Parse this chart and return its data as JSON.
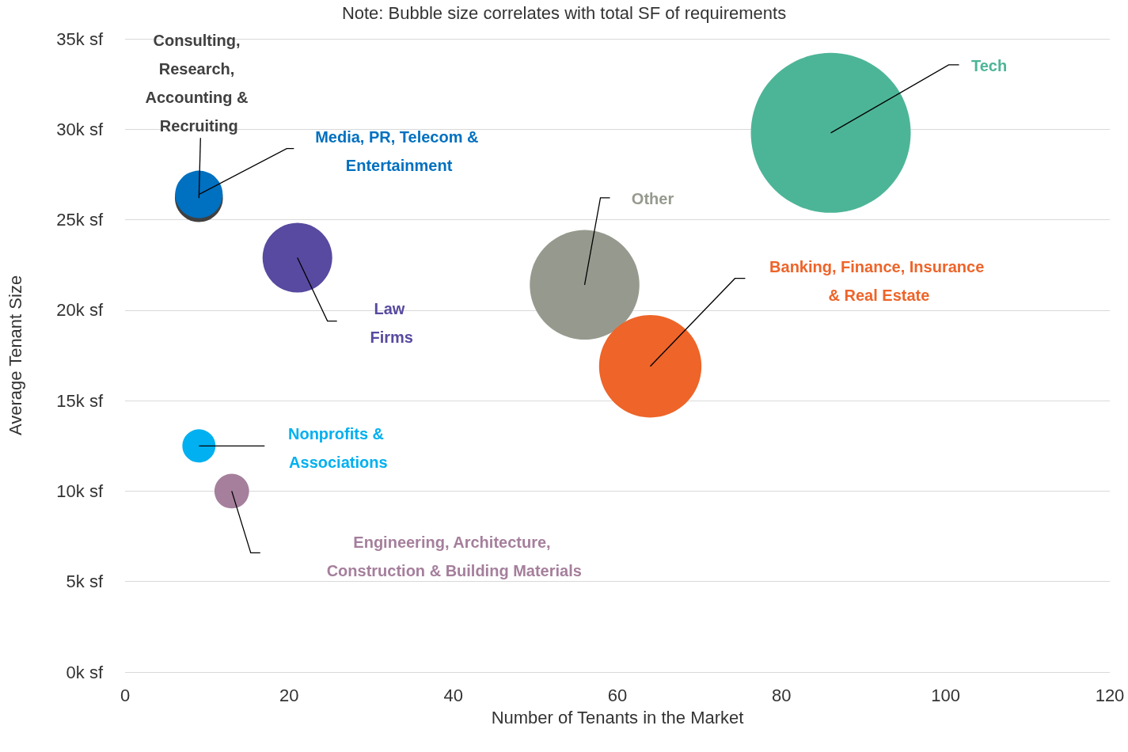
{
  "chart_data": {
    "type": "bubble",
    "title": "Note: Bubble size correlates with total SF of requirements",
    "xlabel": "Number of Tenants in the Market",
    "ylabel": "Average Tenant Size",
    "xlim": [
      0,
      120
    ],
    "xticks": [
      0,
      20,
      40,
      60,
      80,
      100,
      120
    ],
    "ylim": [
      0,
      35000
    ],
    "yticks": [
      {
        "value": 0,
        "label": "0k sf"
      },
      {
        "value": 5000,
        "label": "5k sf"
      },
      {
        "value": 10000,
        "label": "10k sf"
      },
      {
        "value": 15000,
        "label": "15k sf"
      },
      {
        "value": 20000,
        "label": "20k sf"
      },
      {
        "value": 25000,
        "label": "25k sf"
      },
      {
        "value": 30000,
        "label": "30k sf"
      },
      {
        "value": 35000,
        "label": "35k sf"
      }
    ],
    "grid": "y",
    "legend": false,
    "marker": "circle",
    "series": [
      {
        "name": "Consulting, Research, Accounting & Recruiting",
        "color": "#404040",
        "x": [
          9
        ],
        "values": [
          26200
        ],
        "sizes": [
          0.09
        ]
      },
      {
        "name": "Media, PR, Telecom & Entertainment",
        "color": "#0070c0",
        "x": [
          9
        ],
        "values": [
          26400
        ],
        "sizes": [
          0.088
        ]
      },
      {
        "name": "Law Firms",
        "color": "#574aa0",
        "x": [
          21
        ],
        "values": [
          22900
        ],
        "sizes": [
          0.19
        ]
      },
      {
        "name": "Other",
        "color": "#969a8e",
        "x": [
          56
        ],
        "values": [
          21400
        ],
        "sizes": [
          0.47
        ]
      },
      {
        "name": "Banking, Finance, Insurance & Real Estate",
        "color": "#ee6429",
        "x": [
          64
        ],
        "values": [
          16900
        ],
        "sizes": [
          0.41
        ]
      },
      {
        "name": "Tech",
        "color": "#4db597",
        "x": [
          86
        ],
        "values": [
          29800
        ],
        "sizes": [
          1
        ]
      },
      {
        "name": "Nonprofits & Associations",
        "color": "#00b0f0",
        "x": [
          9
        ],
        "values": [
          12500
        ],
        "sizes": [
          0.043
        ]
      },
      {
        "name": "Engineering, Architecture, Construction & Building Materials",
        "color": "#a57f9c",
        "x": [
          13
        ],
        "values": [
          10000
        ],
        "sizes": [
          0.047
        ]
      }
    ]
  }
}
